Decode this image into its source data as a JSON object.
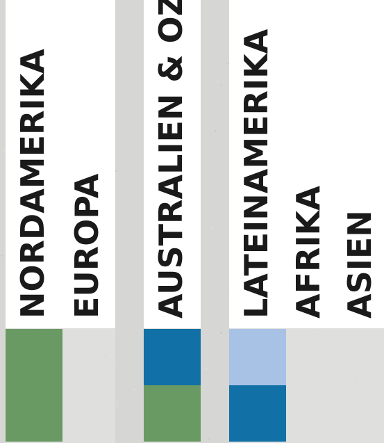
{
  "chart_data": {
    "type": "bar",
    "orientation": "vertical-stacked-blocks",
    "columns": [
      {
        "name": "col-1",
        "labels": [
          "NORDAMERIKA",
          "EUROPA"
        ],
        "blocks": [
          {
            "color": "#6a9a63",
            "units": 2
          }
        ]
      },
      {
        "name": "col-2",
        "labels": [
          "AUSTRALIEN & OZEANIEN"
        ],
        "blocks": [
          {
            "color": "#6a9a63",
            "units": 1
          },
          {
            "color": "#1170a6",
            "units": 1
          }
        ]
      },
      {
        "name": "col-3",
        "labels": [
          "LATEINAMERIKA",
          "AFRIKA",
          "ASIEN"
        ],
        "blocks": [
          {
            "color": "#1170a6",
            "units": 1
          },
          {
            "color": "#a8c2e6",
            "units": 1
          }
        ]
      }
    ],
    "colors": {
      "background": "#d6d6d4",
      "panel": "#ffffff",
      "lane": "#e7e7e5",
      "text": "#1a1a1a"
    }
  }
}
